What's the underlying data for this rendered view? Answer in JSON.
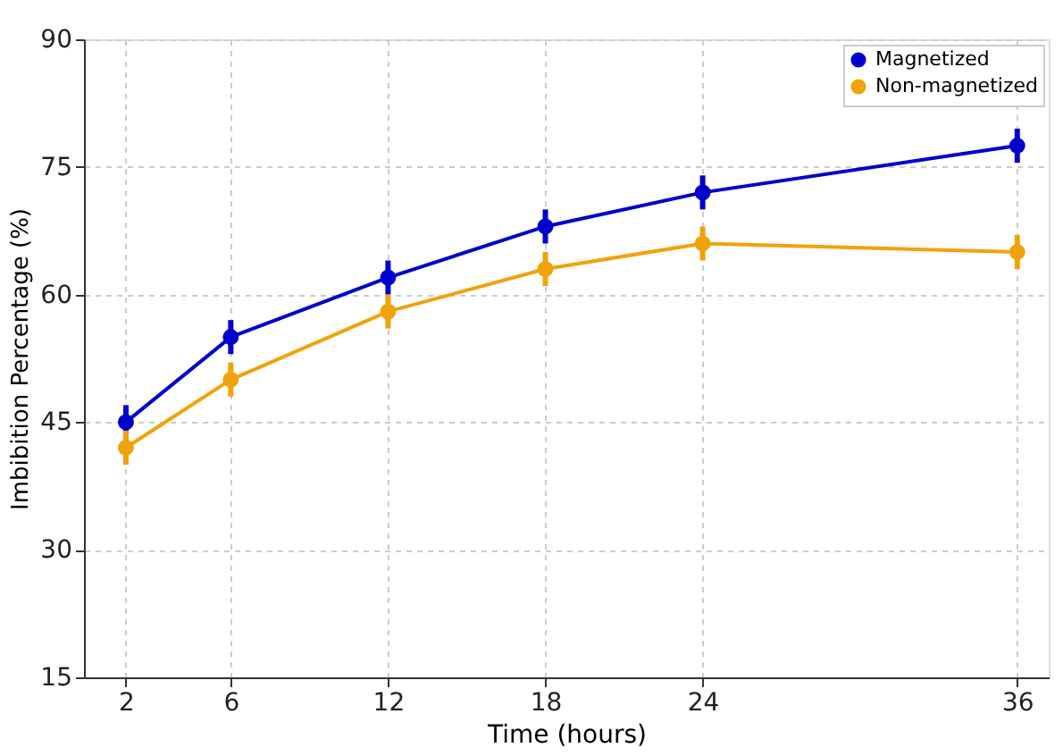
{
  "chart_data": {
    "type": "line",
    "xlabel": "Time (hours)",
    "ylabel": "Imbibition Percentage (%)",
    "x": [
      2,
      6,
      12,
      18,
      24,
      36
    ],
    "series": [
      {
        "name": "Magnetized",
        "color": "#0000cc",
        "values": [
          45,
          55,
          62,
          68,
          72,
          77.5
        ],
        "errors": [
          2,
          2,
          2,
          2,
          2,
          2
        ]
      },
      {
        "name": "Non-magnetized",
        "color": "#f0a30a",
        "values": [
          42,
          50,
          58,
          63,
          66,
          65
        ],
        "errors": [
          2,
          2,
          2,
          2,
          2,
          2
        ]
      }
    ],
    "xlim": [
      0.4,
      37.2
    ],
    "ylim": [
      15,
      90
    ],
    "xticks": [
      2,
      6,
      12,
      18,
      24,
      36
    ],
    "yticks": [
      15,
      30,
      45,
      60,
      75,
      90
    ],
    "grid": true,
    "legend": "top right",
    "marker": "circle",
    "line_style": "solid"
  }
}
